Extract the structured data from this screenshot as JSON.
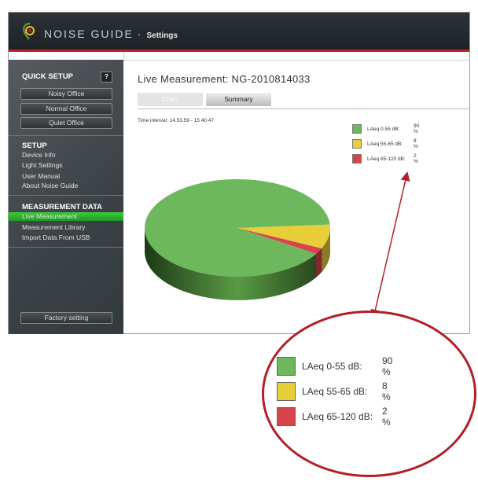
{
  "header": {
    "brand": "NOISE GUIDE",
    "separator": "·",
    "section": "Settings"
  },
  "sidebar": {
    "quick_setup": {
      "title": "QUICK SETUP",
      "help": "?",
      "buttons": [
        "Noisy Office",
        "Normal Office",
        "Quiet Office"
      ]
    },
    "setup": {
      "title": "SETUP",
      "items": [
        "Device Info",
        "Light Settings",
        "User Manual",
        "About Noise Guide"
      ]
    },
    "measurement": {
      "title": "MEASUREMENT DATA",
      "items": [
        "Live Measurement",
        "Measurement Library",
        "Import Data From USB"
      ],
      "active": "Live Measurement"
    },
    "factory_button": "Factory setting"
  },
  "main": {
    "title": "Live Measurement: NG-2010814033",
    "tabs": [
      {
        "label": "Chart",
        "active": true
      },
      {
        "label": "Summary"
      }
    ],
    "time_interval": "Time interval: 14.53.59 - 15.40.47"
  },
  "chart_data": {
    "type": "pie",
    "style": "3d",
    "slices": [
      {
        "label": "LAeq 0-55 dB:",
        "value": 90,
        "display": "90 %",
        "color": "#6db85c"
      },
      {
        "label": "LAeq 55-65 dB:",
        "value": 8,
        "display": "8 %",
        "color": "#e8cf3a"
      },
      {
        "label": "LAeq 65-120 dB:",
        "value": 2,
        "display": "2 %",
        "color": "#d9444b"
      }
    ],
    "legend_placement": "top-right"
  },
  "colors": {
    "accent": "#c8202a",
    "active_nav": "#2fb52f",
    "callout": "#b21f28"
  }
}
